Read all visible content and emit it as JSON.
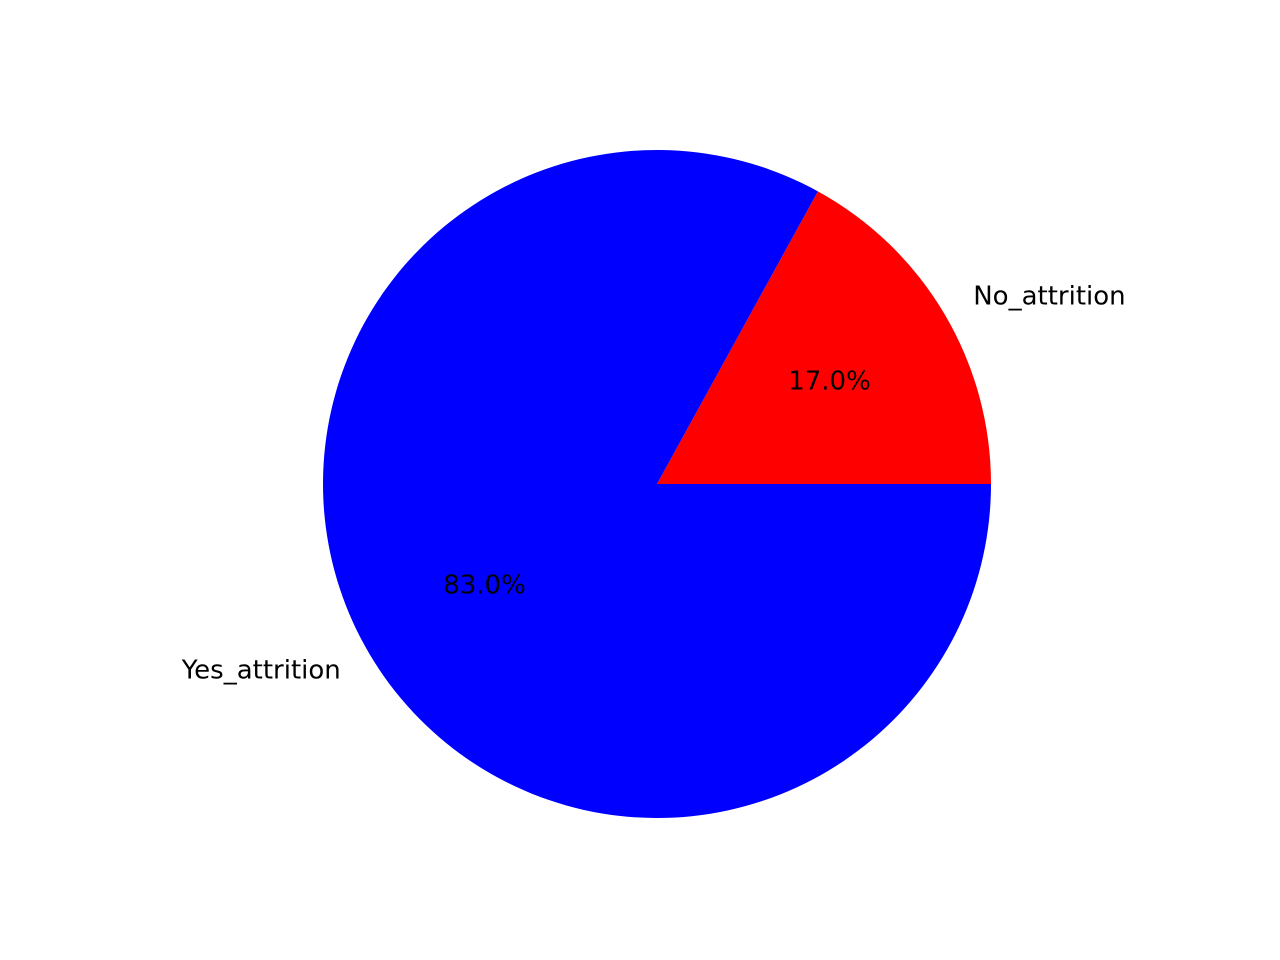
{
  "chart_data": {
    "type": "pie",
    "title": "",
    "start_angle_deg": 0,
    "direction": "counterclockwise",
    "slices": [
      {
        "label": "No_attrition",
        "value": 17.0,
        "pct_label": "17.0%",
        "color": "#ff0000"
      },
      {
        "label": "Yes_attrition",
        "value": 83.0,
        "pct_label": "83.0%",
        "color": "#0000ff"
      }
    ]
  }
}
